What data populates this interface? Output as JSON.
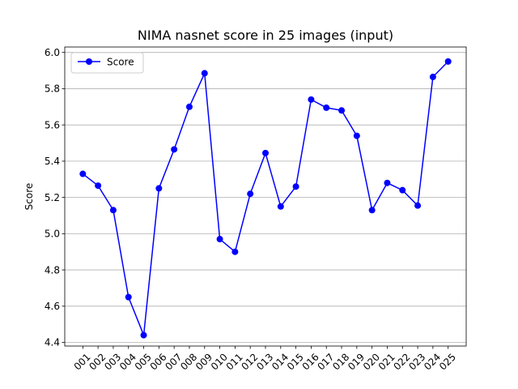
{
  "chart_data": {
    "type": "line",
    "title": "NIMA nasnet score in 25 images (input)",
    "xlabel": "",
    "ylabel": "Score",
    "categories": [
      "001",
      "002",
      "003",
      "004",
      "005",
      "006",
      "007",
      "008",
      "009",
      "010",
      "011",
      "012",
      "013",
      "014",
      "015",
      "016",
      "017",
      "018",
      "019",
      "020",
      "021",
      "022",
      "023",
      "024",
      "025"
    ],
    "series": [
      {
        "name": "Score",
        "color": "#0000ff",
        "marker": "circle",
        "values": [
          5.33,
          5.265,
          5.13,
          4.65,
          4.44,
          5.25,
          5.465,
          5.7,
          5.885,
          4.97,
          4.9,
          5.22,
          5.445,
          5.15,
          5.26,
          5.74,
          5.695,
          5.68,
          5.54,
          5.13,
          5.28,
          5.24,
          5.155,
          5.865,
          5.95
        ]
      }
    ],
    "ylim": [
      4.38,
      6.03
    ],
    "yticks": [
      "4.4",
      "4.6",
      "4.8",
      "5.0",
      "5.2",
      "5.4",
      "5.6",
      "5.8",
      "6.0"
    ],
    "grid": "horizontal",
    "legend_position": "top-left"
  }
}
